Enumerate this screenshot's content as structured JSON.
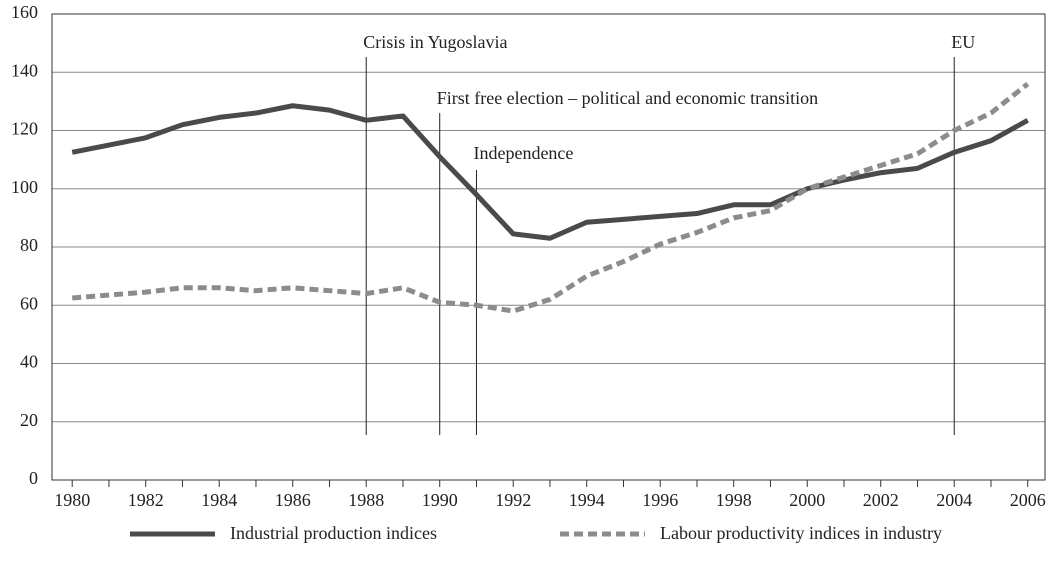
{
  "chart_data": {
    "type": "line",
    "x": [
      1980,
      1981,
      1982,
      1983,
      1984,
      1985,
      1986,
      1987,
      1988,
      1989,
      1990,
      1991,
      1992,
      1993,
      1994,
      1995,
      1996,
      1997,
      1998,
      1999,
      2000,
      2001,
      2002,
      2003,
      2004,
      2005,
      2006
    ],
    "series": [
      {
        "name": "Industrial production indices",
        "color": "#4a4a4a",
        "dash": "solid",
        "values": [
          112.5,
          115,
          117.5,
          122,
          124.5,
          126,
          128.5,
          127,
          123.5,
          125,
          111,
          98,
          84.5,
          83,
          88.5,
          89.5,
          90.5,
          91.5,
          94.5,
          94.5,
          100,
          103,
          105.5,
          107,
          112.5,
          116.5,
          123.5
        ]
      },
      {
        "name": "Labour productivity indices in industry",
        "color": "#8c8c8c",
        "dash": "dashed",
        "values": [
          62.5,
          63.5,
          64.5,
          66,
          66,
          65,
          66,
          65,
          64,
          66,
          61,
          60,
          58,
          62,
          70,
          75,
          81,
          85,
          90,
          92.5,
          100,
          104,
          108,
          112,
          120,
          126,
          136
        ]
      }
    ],
    "annotations": [
      {
        "x": 1988,
        "label": "Crisis in Yugoslavia"
      },
      {
        "x": 1990,
        "label": "First free election – political and economic transition"
      },
      {
        "x": 1991,
        "label": "Independence"
      },
      {
        "x": 2004,
        "label": "EU"
      }
    ],
    "xlim": [
      1979.45,
      2006.47
    ],
    "xticks": [
      1980,
      1982,
      1984,
      1986,
      1988,
      1990,
      1992,
      1994,
      1996,
      1998,
      2000,
      2002,
      2004,
      2006
    ],
    "ylim": [
      0,
      160
    ],
    "yticks": [
      0,
      20,
      40,
      60,
      80,
      100,
      120,
      140,
      160
    ],
    "grid": true
  }
}
